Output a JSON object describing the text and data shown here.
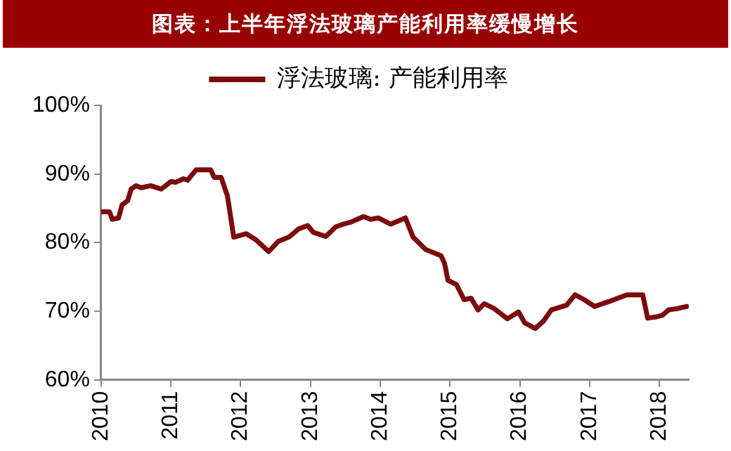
{
  "chart_data": {
    "type": "line",
    "title": "图表：上半年浮法玻璃产能利用率缓慢增长",
    "x": [
      2010.0,
      2010.12,
      2010.16,
      2010.25,
      2010.3,
      2010.38,
      2010.43,
      2010.5,
      2010.57,
      2010.71,
      2010.86,
      2011.0,
      2011.07,
      2011.18,
      2011.24,
      2011.36,
      2011.57,
      2011.62,
      2011.72,
      2011.81,
      2011.9,
      2012.08,
      2012.22,
      2012.4,
      2012.54,
      2012.69,
      2012.83,
      2012.96,
      2013.04,
      2013.22,
      2013.36,
      2013.47,
      2013.58,
      2013.76,
      2013.86,
      2013.97,
      2014.15,
      2014.36,
      2014.47,
      2014.65,
      2014.87,
      2014.92,
      2014.97,
      2015.09,
      2015.2,
      2015.3,
      2015.4,
      2015.49,
      2015.63,
      2015.82,
      2015.98,
      2016.07,
      2016.22,
      2016.34,
      2016.45,
      2016.67,
      2016.79,
      2016.92,
      2017.07,
      2017.27,
      2017.53,
      2017.76,
      2017.83,
      2017.96,
      2018.04,
      2018.13,
      2018.26,
      2018.39
    ],
    "series": [
      {
        "name": "浮法玻璃: 产能利用率",
        "color": "#7b0c0c",
        "values": [
          84.5,
          84.5,
          83.4,
          83.6,
          85.5,
          86.1,
          87.8,
          88.3,
          88.0,
          88.3,
          87.8,
          88.9,
          88.8,
          89.3,
          89.1,
          90.6,
          90.6,
          89.5,
          89.5,
          86.8,
          80.8,
          81.3,
          80.4,
          78.7,
          80.2,
          80.8,
          82.0,
          82.5,
          81.5,
          80.9,
          82.3,
          82.7,
          83.0,
          83.8,
          83.4,
          83.6,
          82.7,
          83.6,
          80.8,
          79.0,
          78.1,
          77.0,
          74.5,
          73.9,
          71.7,
          71.9,
          70.2,
          71.1,
          70.4,
          68.9,
          69.9,
          68.3,
          67.5,
          68.6,
          70.2,
          70.9,
          72.4,
          71.7,
          70.7,
          71.4,
          72.4,
          72.4,
          69.0,
          69.2,
          69.4,
          70.2,
          70.4,
          70.7
        ]
      }
    ],
    "xlim": [
      2010,
      2018.42
    ],
    "xticks": [
      2010,
      2011,
      2012,
      2013,
      2014,
      2015,
      2016,
      2017,
      2018
    ],
    "ylim": [
      60,
      100
    ],
    "yticks": [
      {
        "value": 60,
        "label": "60%"
      },
      {
        "value": 70,
        "label": "70%"
      },
      {
        "value": 80,
        "label": "80%"
      },
      {
        "value": 90,
        "label": "90%"
      },
      {
        "value": 100,
        "label": "100%"
      }
    ],
    "grid": false,
    "legend": "top",
    "marker": "none",
    "line_style": "solid"
  }
}
